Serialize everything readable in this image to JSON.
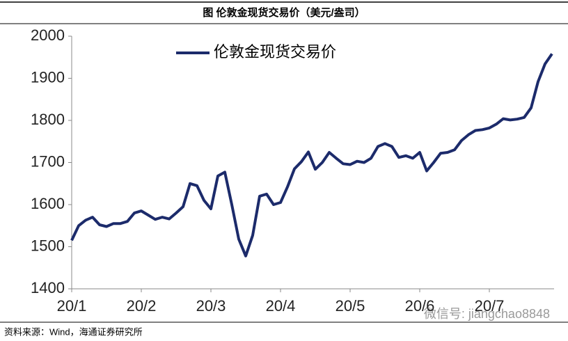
{
  "chart_data": {
    "type": "line",
    "title": "图  伦敦金现货交易价（美元/盎司）",
    "source": "资料来源：Wind，海通证券研究所",
    "watermark": "微信号: jiangchao8848",
    "categories": [
      "20/1",
      null,
      null,
      null,
      null,
      null,
      null,
      null,
      null,
      null,
      "20/2",
      null,
      null,
      null,
      null,
      null,
      null,
      null,
      null,
      null,
      "20/3",
      null,
      null,
      null,
      null,
      null,
      null,
      null,
      null,
      null,
      "20/4",
      null,
      null,
      null,
      null,
      null,
      null,
      null,
      null,
      null,
      "20/5",
      null,
      null,
      null,
      null,
      null,
      null,
      null,
      null,
      null,
      "20/6",
      null,
      null,
      null,
      null,
      null,
      null,
      null,
      null,
      null,
      "20/7",
      null,
      null,
      null,
      null,
      null,
      null,
      null,
      null,
      null
    ],
    "series": [
      {
        "name": "伦敦金现货交易价",
        "color": "#1c2b6b",
        "values": [
          1515,
          1550,
          1563,
          1570,
          1552,
          1548,
          1555,
          1555,
          1560,
          1580,
          1585,
          1575,
          1565,
          1570,
          1566,
          1580,
          1595,
          1650,
          1645,
          1610,
          1590,
          1668,
          1677,
          1600,
          1518,
          1478,
          1527,
          1620,
          1625,
          1600,
          1605,
          1642,
          1685,
          1702,
          1725,
          1684,
          1700,
          1724,
          1710,
          1697,
          1695,
          1703,
          1700,
          1710,
          1738,
          1745,
          1738,
          1712,
          1716,
          1710,
          1724,
          1680,
          1700,
          1722,
          1724,
          1730,
          1752,
          1766,
          1776,
          1778,
          1782,
          1791,
          1804,
          1801,
          1803,
          1807,
          1830,
          1892,
          1934,
          1958
        ]
      }
    ],
    "ylim": [
      1400,
      2000
    ],
    "yticks": [
      1400,
      1500,
      1600,
      1700,
      1800,
      1900,
      2000
    ],
    "grid": false,
    "legend": "top-left"
  }
}
